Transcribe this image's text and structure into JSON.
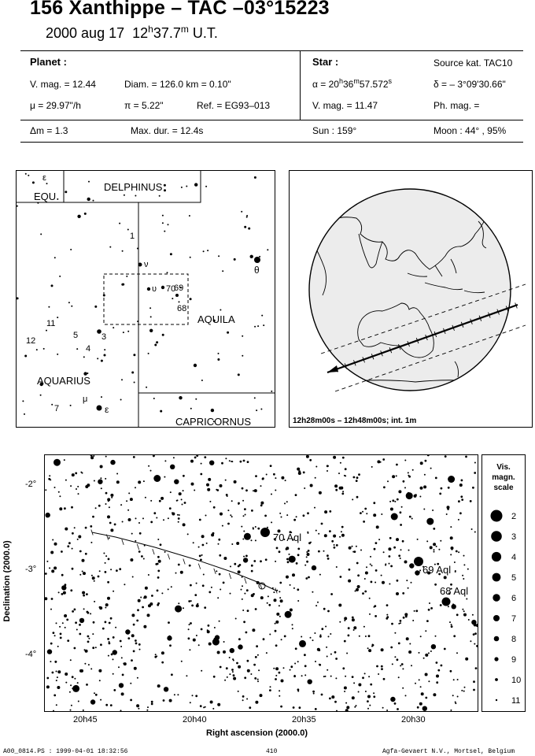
{
  "header": {
    "title": "156 Xanthippe  –  TAC –03°15223",
    "date": "2000 aug 17",
    "time_h": "12",
    "time_h_unit": "h",
    "time_m": "37.7",
    "time_m_unit": "m",
    "time_scale": "U.T."
  },
  "planet": {
    "heading": "Planet :",
    "vmag": "V. mag. = 12.44",
    "diam": "Diam. = 126.0 km = 0.10\"",
    "mu": "μ = 29.97\"/h",
    "pi": "π = 5.22\"",
    "ref": "Ref. = EG93–013"
  },
  "star": {
    "heading": "Star :",
    "source": "Source kat. TAC10",
    "alpha_prefix": "α = 20",
    "alpha_h": "h",
    "alpha_min": "36",
    "alpha_m": "m",
    "alpha_sec": "57.572",
    "alpha_s": "s",
    "delta": "δ = – 3°09'30.66\"",
    "vmag": "V. mag. = 11.47",
    "phmag": "Ph. mag. ="
  },
  "summary": {
    "dm": "Δm = 1.3",
    "maxdur": "Max. dur. = 12.4s",
    "sun": "Sun : 159°",
    "moon": "Moon : 44° , 95%"
  },
  "finder_chart": {
    "constellations": [
      "DELPHINUS",
      "EQU",
      "AQUILA",
      "AQUARIUS",
      "CAPRICORNUS"
    ],
    "star_labels": {
      "eps_equ": "ε",
      "one": "1",
      "nu": "ν",
      "upsilon": "υ",
      "seventy": "70",
      "sixtynine": "69",
      "sixtyeight": "68",
      "theta": "θ",
      "eleven": "11",
      "twelve": "12",
      "five": "5",
      "four": "4",
      "three": "3",
      "seven": "7",
      "mu": "μ",
      "eps_aqr": "ε"
    }
  },
  "globe": {
    "caption": "12h28m00s – 12h48m00s; int.  1m"
  },
  "star_chart": {
    "y_axis_label": "Declination (2000.0)",
    "x_axis_label": "Right ascension (2000.0)",
    "y_ticks": [
      "-2°",
      "-3°",
      "-4°"
    ],
    "x_ticks": [
      "20h45",
      "20h40",
      "20h35",
      "20h30"
    ],
    "star_labels": [
      "70 Aql",
      "69 Aql",
      "68 Aql"
    ]
  },
  "mag_scale": {
    "title_lines": [
      "Vis.",
      "magn.",
      "scale"
    ],
    "values": [
      "2",
      "3",
      "4",
      "5",
      "6",
      "7",
      "8",
      "9",
      "10",
      "11"
    ]
  },
  "footer": {
    "left": "A00_0814.PS : 1999-04-01 18:32:56",
    "center": "410",
    "right": "Agfa-Gevaert N.V., Mortsel, Belgium"
  }
}
